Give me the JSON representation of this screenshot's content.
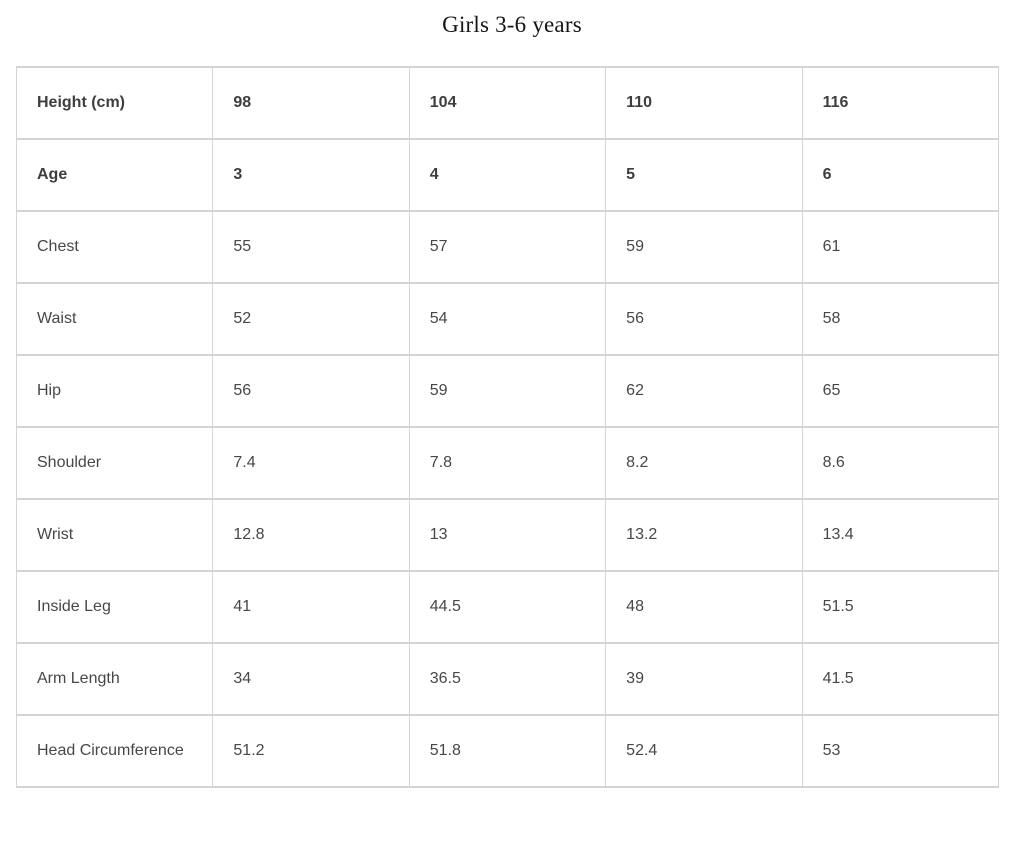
{
  "title": "Girls 3-6 years",
  "colors": {
    "text": "#474747",
    "bold_text": "#3e3e3e",
    "border": "#d4d4d4",
    "title": "#151515",
    "background": "#ffffff"
  },
  "table": {
    "columns": 5,
    "rows": [
      {
        "bold": true,
        "cells": [
          "Height (cm)",
          "98",
          "104",
          "110",
          "116"
        ]
      },
      {
        "bold": true,
        "cells": [
          "Age",
          "3",
          "4",
          "5",
          "6"
        ]
      },
      {
        "bold": false,
        "cells": [
          "Chest",
          "55",
          "57",
          "59",
          "61"
        ]
      },
      {
        "bold": false,
        "cells": [
          "Waist",
          "52",
          "54",
          "56",
          "58"
        ]
      },
      {
        "bold": false,
        "cells": [
          "Hip",
          "56",
          "59",
          "62",
          "65"
        ]
      },
      {
        "bold": false,
        "cells": [
          "Shoulder",
          "7.4",
          "7.8",
          "8.2",
          "8.6"
        ]
      },
      {
        "bold": false,
        "cells": [
          "Wrist",
          "12.8",
          "13",
          "13.2",
          "13.4"
        ]
      },
      {
        "bold": false,
        "cells": [
          "Inside Leg",
          "41",
          "44.5",
          "48",
          "51.5"
        ]
      },
      {
        "bold": false,
        "cells": [
          "Arm Length",
          "34",
          "36.5",
          "39",
          "41.5"
        ]
      },
      {
        "bold": false,
        "cells": [
          "Head Circumference",
          "51.2",
          "51.8",
          "52.4",
          "53"
        ]
      }
    ]
  }
}
